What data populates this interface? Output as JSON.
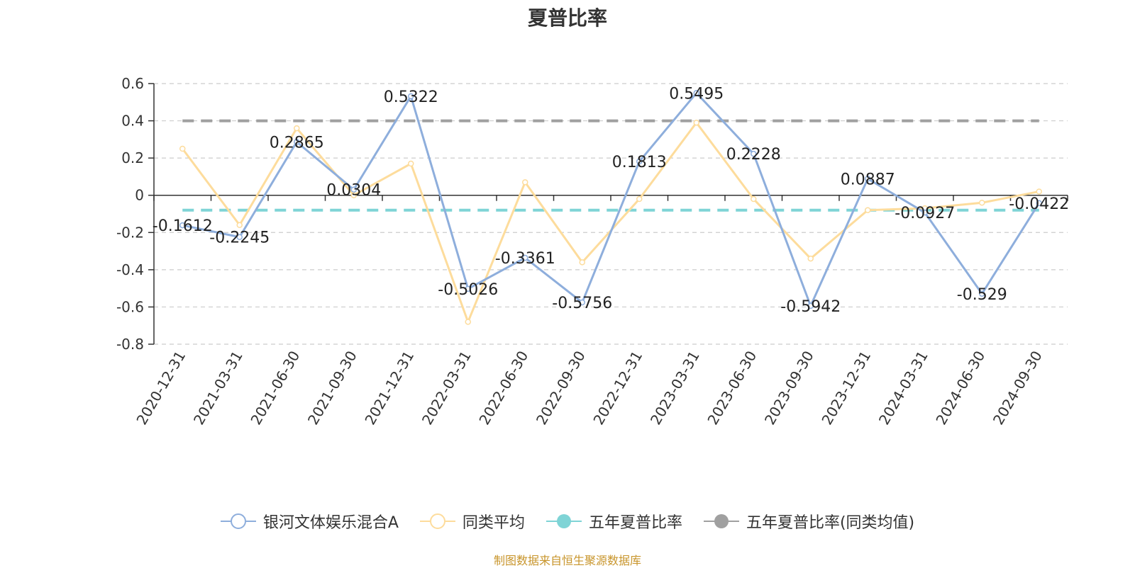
{
  "chart_data": {
    "type": "line",
    "title": "夏普比率",
    "categories": [
      "2020-12-31",
      "2021-03-31",
      "2021-06-30",
      "2021-09-30",
      "2021-12-31",
      "2022-03-31",
      "2022-06-30",
      "2022-09-30",
      "2022-12-31",
      "2023-03-31",
      "2023-06-30",
      "2023-09-30",
      "2023-12-31",
      "2024-03-31",
      "2024-06-30",
      "2024-09-30"
    ],
    "ylim": [
      -0.8,
      0.6
    ],
    "yticks": [
      0.6,
      0.4,
      0.2,
      0,
      -0.2,
      -0.4,
      -0.6,
      -0.8
    ],
    "ytick_labels": [
      "0.6",
      "0.4",
      "0.2",
      "0",
      "-0.2",
      "-0.4",
      "-0.6",
      "-0.8"
    ],
    "grid": true,
    "legend_position": "bottom",
    "series": [
      {
        "name": "银河文体娱乐混合A",
        "color": "#8eaedc",
        "values": [
          -0.1612,
          -0.2245,
          0.2865,
          0.0304,
          0.5322,
          -0.5026,
          -0.3361,
          -0.5756,
          0.1813,
          0.5495,
          0.2228,
          -0.5942,
          0.0887,
          -0.0927,
          -0.529,
          -0.0422
        ],
        "data_labels": [
          "-0.1612",
          "-0.2245",
          "0.2865",
          "0.0304",
          "0.5322",
          "-0.5026",
          "-0.3361",
          "-0.5756",
          "0.1813",
          "0.5495",
          "0.2228",
          "-0.5942",
          "0.0887",
          "-0.0927",
          "-0.529",
          "-0.0422"
        ]
      },
      {
        "name": "同类平均",
        "color": "#fddc9c",
        "values": [
          0.25,
          -0.16,
          0.36,
          0.0,
          0.17,
          -0.68,
          0.07,
          -0.36,
          -0.02,
          0.39,
          -0.02,
          -0.34,
          -0.08,
          -0.07,
          -0.04,
          0.02
        ]
      }
    ],
    "reference_lines": [
      {
        "name": "五年夏普比率",
        "value": -0.08,
        "color": "#7fd4d6"
      },
      {
        "name": "五年夏普比率(同类均值)",
        "value": 0.4,
        "color": "#a0a0a0"
      }
    ],
    "source": "制图数据来自恒生聚源数据库"
  }
}
